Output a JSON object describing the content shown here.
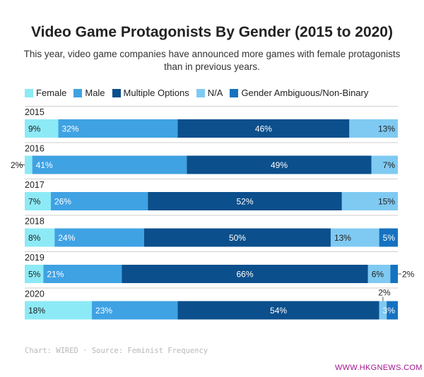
{
  "chart_data": {
    "type": "bar",
    "orientation": "horizontal-stacked",
    "title": "Video Game Protagonists By Gender (2015 to 2020)",
    "subtitle": "This year, video game companies have announced more games with female protagonists than in previous years.",
    "legend": [
      {
        "name": "Female",
        "color": "#8ceaf6"
      },
      {
        "name": "Male",
        "color": "#3fa2e3"
      },
      {
        "name": "Multiple Options",
        "color": "#0b4f8c"
      },
      {
        "name": "N/A",
        "color": "#7fcaf2"
      },
      {
        "name": "Gender Ambiguous/Non-Binary",
        "color": "#1572c0"
      }
    ],
    "categories": [
      "2015",
      "2016",
      "2017",
      "2018",
      "2019",
      "2020"
    ],
    "series": [
      {
        "name": "Female",
        "values": [
          9,
          2,
          7,
          8,
          5,
          18
        ],
        "labels": [
          "9%",
          "2%",
          "7%",
          "8%",
          "5%",
          "18%"
        ]
      },
      {
        "name": "Male",
        "values": [
          32,
          41,
          26,
          24,
          21,
          23
        ],
        "labels": [
          "32%",
          "41%",
          "26%",
          "24%",
          "21%",
          "23%"
        ]
      },
      {
        "name": "Multiple Options",
        "values": [
          46,
          49,
          52,
          50,
          66,
          54
        ],
        "labels": [
          "46%",
          "49%",
          "52%",
          "50%",
          "66%",
          "54%"
        ]
      },
      {
        "name": "N/A",
        "values": [
          13,
          7,
          15,
          13,
          6,
          2
        ],
        "labels": [
          "13%",
          "7%",
          "15%",
          "13%",
          "6%",
          "2%"
        ]
      },
      {
        "name": "Gender Ambiguous/Non-Binary",
        "values": [
          0,
          0,
          0,
          5,
          2,
          3
        ],
        "labels": [
          "",
          "",
          "",
          "5%",
          "2%",
          "3%"
        ]
      }
    ],
    "xlim": [
      0,
      100
    ]
  },
  "source": "Chart: WIRED · Source: Feminist Frequency",
  "watermark": "WWW.HKGNEWS.COM"
}
